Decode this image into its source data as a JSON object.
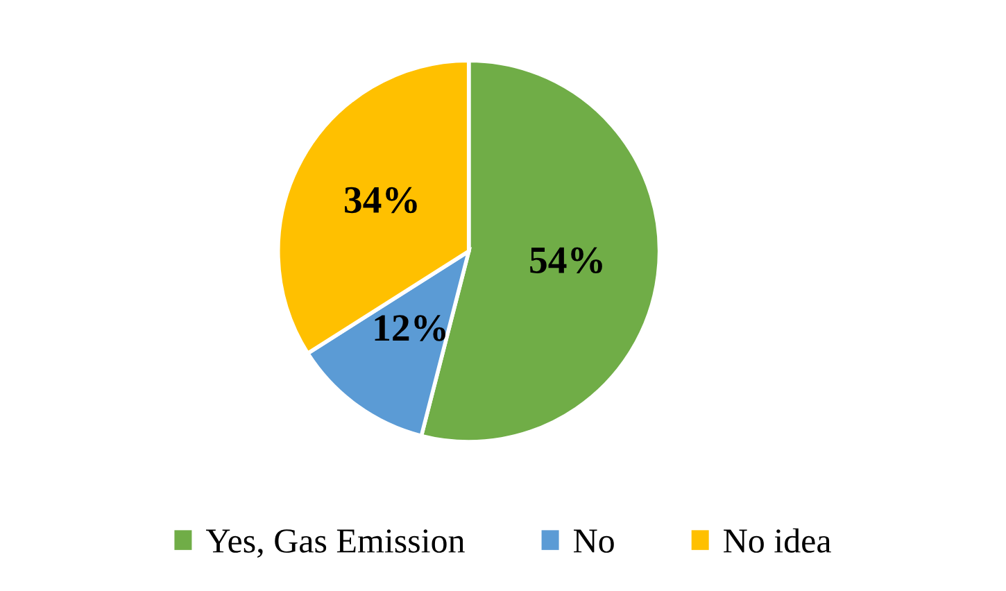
{
  "chart_data": {
    "type": "pie",
    "categories": [
      "Yes, Gas Emission",
      "No",
      "No idea"
    ],
    "values": [
      54,
      12,
      34
    ],
    "colors": [
      "#70ad47",
      "#5b9bd5",
      "#ffc000"
    ],
    "value_labels": [
      "54%",
      "12%",
      "34%"
    ],
    "legend": "bottom"
  }
}
